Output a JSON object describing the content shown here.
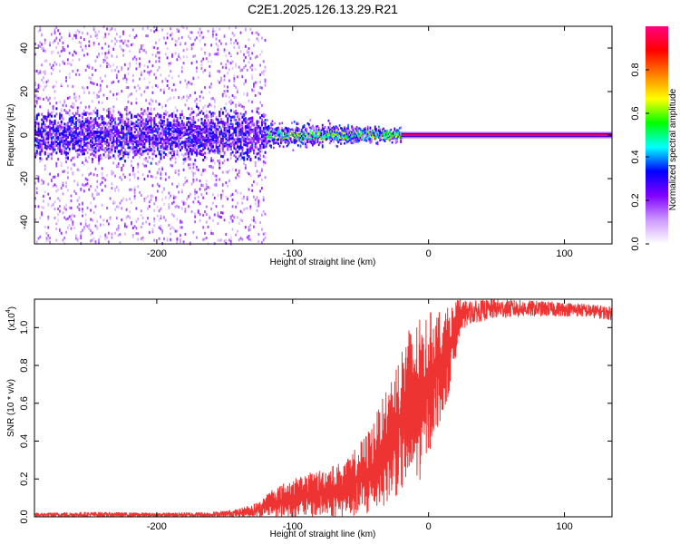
{
  "figure": {
    "title": "C2E1.2025.126.13.29.R21"
  },
  "chart_data": [
    {
      "type": "heatmap",
      "title": "C2E1.2025.126.13.29.R21",
      "xlabel": "Height of straight line (km)",
      "ylabel": "Frequency (Hz)",
      "xlim": [
        -290,
        135
      ],
      "ylim": [
        -50,
        50
      ],
      "xticks": [
        -200,
        -100,
        0,
        100
      ],
      "yticks": [
        -40,
        -20,
        0,
        20,
        40
      ],
      "xticklabels": [
        "-200",
        "-100",
        "0",
        "100"
      ],
      "yticklabels": [
        "-40",
        "-20",
        "0",
        "20",
        "40"
      ],
      "colorbar": {
        "label": "Normalized spectral amplitude",
        "range": [
          0,
          1
        ],
        "ticks": [
          "0.0",
          "0.2",
          "0.4",
          "0.6",
          "0.8"
        ],
        "colors": [
          "#ffffff",
          "#cc99ff",
          "#8000ff",
          "#0000ff",
          "#00ffff",
          "#00ff00",
          "#ffff00",
          "#ff8000",
          "#ff0000",
          "#ff0080"
        ]
      },
      "regions": [
        {
          "x_range": [
            -290,
            -120
          ],
          "freq_spread_hz": 50,
          "description_level": 0.15,
          "core_freq_spread_hz": 10,
          "core_level": 0.25
        },
        {
          "x_range": [
            -120,
            -20
          ],
          "freq_spread_hz": 8,
          "core_level": 0.5
        },
        {
          "x_range": [
            -20,
            135
          ],
          "center_freq_hz": 0,
          "level": 0.95
        }
      ]
    },
    {
      "type": "line",
      "xlabel": "Height of straight line (km)",
      "ylabel": "SNR (10 * v/v)",
      "scale_label": "(x10",
      "scale_exp": "4",
      "xlim": [
        -290,
        135
      ],
      "ylim": [
        0,
        1.15
      ],
      "xticks": [
        -200,
        -100,
        0,
        100
      ],
      "yticks": [
        0.0,
        0.2,
        0.4,
        0.6,
        0.8,
        1.0
      ],
      "xticklabels": [
        "-200",
        "-100",
        "0",
        "100"
      ],
      "yticklabels": [
        "0.0",
        "0.2",
        "0.4",
        "0.6",
        "0.8",
        "1.0"
      ],
      "series": [
        {
          "color": "#ee3333",
          "envelope": {
            "x": [
              -290,
              -250,
              -200,
              -160,
              -140,
              -125,
              -115,
              -100,
              -80,
              -60,
              -45,
              -35,
              -25,
              -15,
              -5,
              5,
              12,
              18,
              22,
              30,
              50,
              80,
              110,
              135
            ],
            "y_min": [
              0.0,
              0.0,
              0.0,
              0.0,
              0.0,
              0.0,
              0.0,
              0.0,
              0.0,
              0.0,
              0.0,
              0.05,
              0.1,
              0.15,
              0.2,
              0.45,
              0.55,
              0.75,
              0.95,
              1.02,
              1.05,
              1.06,
              1.06,
              1.04
            ],
            "y_max": [
              0.02,
              0.025,
              0.02,
              0.025,
              0.04,
              0.08,
              0.15,
              0.2,
              0.25,
              0.3,
              0.45,
              0.6,
              0.8,
              1.0,
              1.05,
              1.1,
              1.1,
              1.12,
              1.15,
              1.14,
              1.15,
              1.14,
              1.13,
              1.11
            ]
          }
        }
      ]
    }
  ]
}
